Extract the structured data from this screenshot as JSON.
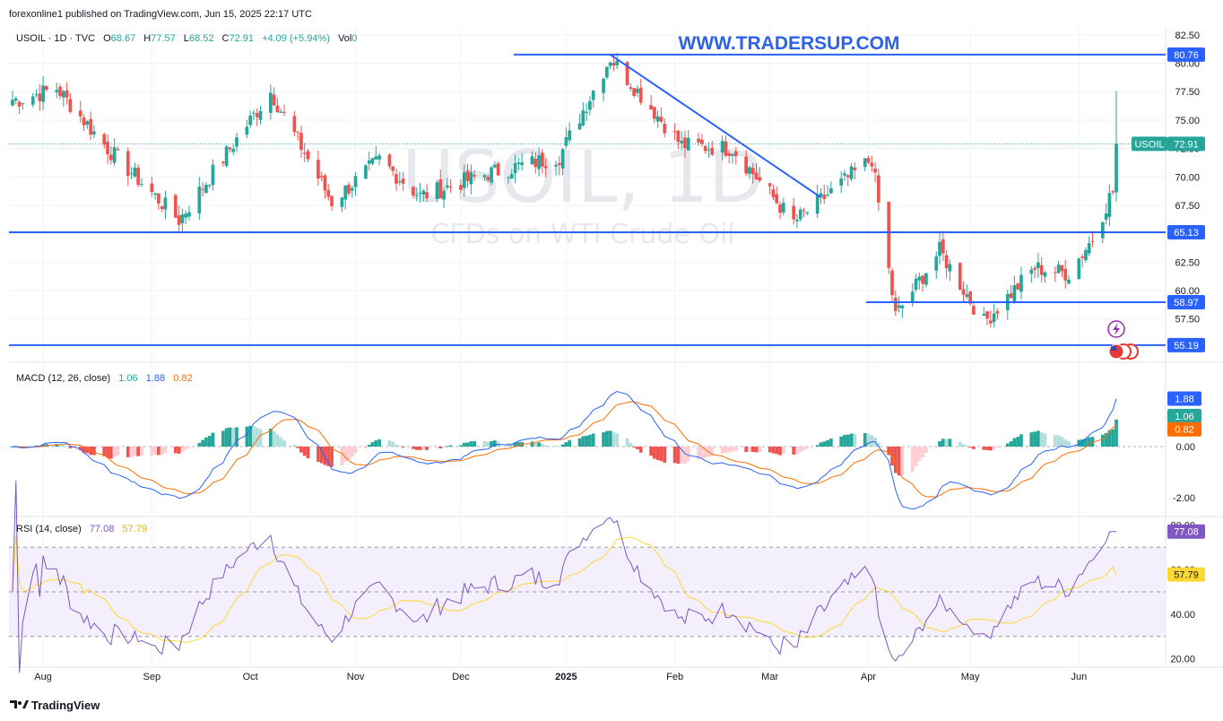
{
  "publish_line": "forexonline1 published on TradingView.com, Jun 15, 2025 22:17 UTC",
  "footer_brand": "TradingView",
  "website": "WWW.TRADERSUP.COM",
  "watermark": {
    "symbol": "USOIL, 1D",
    "description": "CFDs on WTI Crude Oil"
  },
  "legend": {
    "symbol": "USOIL · 1D · TVC",
    "o_label": "O",
    "o": "68.67",
    "h_label": "H",
    "h": "77.57",
    "l_label": "L",
    "l": "68.52",
    "c_label": "C",
    "c": "72.91",
    "change": "+4.09 (+5.94%)",
    "vol_label": "Vol",
    "vol": "0"
  },
  "colors": {
    "up": "#26a69a",
    "down": "#ef5350",
    "level_line": "#2962ff",
    "grid": "#f0f3fa",
    "macd_line": "#2962ff",
    "signal_line": "#ff6d00",
    "rsi_line": "#7e57c2",
    "rsi_ma": "#fdd835",
    "rsi_band": "#f3effc",
    "price_badge": "#26a69a"
  },
  "chart_data": [
    {
      "type": "candlestick",
      "title": "USOIL · 1D · TVC",
      "ylim": [
        54,
        83.2
      ],
      "y_ticks": [
        "82.50",
        "80.00",
        "77.50",
        "75.00",
        "72.50",
        "70.00",
        "67.50",
        "65.00",
        "62.50",
        "60.00",
        "57.50",
        "55.00"
      ],
      "x_ticks": [
        "Aug",
        "Sep",
        "Oct",
        "Nov",
        "Dec",
        "2025",
        "Feb",
        "Mar",
        "Apr",
        "May",
        "Jun"
      ],
      "last_close": 72.91,
      "last_close_label": "USOIL",
      "last_close_text": "72.91",
      "horizontal_levels": [
        {
          "value": 80.76,
          "label": "80.76"
        },
        {
          "value": 65.13,
          "label": "65.13"
        },
        {
          "value": 58.97,
          "label": "58.97"
        },
        {
          "value": 55.19,
          "label": "55.19"
        }
      ],
      "trendline": {
        "from": {
          "date": "2025-01-15",
          "value": 80.76
        },
        "to": {
          "date": "2025-03-18",
          "value": 68.2
        }
      },
      "key_points": [
        {
          "date": "2024-07-25",
          "value": 76.8
        },
        {
          "date": "2024-08-05",
          "value": 77.8
        },
        {
          "date": "2024-08-20",
          "value": 72.5
        },
        {
          "date": "2024-09-10",
          "value": 66.2
        },
        {
          "date": "2024-10-07",
          "value": 77.5
        },
        {
          "date": "2024-10-25",
          "value": 67.8
        },
        {
          "date": "2024-11-08",
          "value": 71.5
        },
        {
          "date": "2024-11-20",
          "value": 68.3
        },
        {
          "date": "2024-12-10",
          "value": 70.3
        },
        {
          "date": "2024-12-31",
          "value": 71.8
        },
        {
          "date": "2025-01-15",
          "value": 80.5
        },
        {
          "date": "2025-02-05",
          "value": 72.8
        },
        {
          "date": "2025-02-20",
          "value": 72.5
        },
        {
          "date": "2025-03-10",
          "value": 66.0
        },
        {
          "date": "2025-04-02",
          "value": 71.6
        },
        {
          "date": "2025-04-09",
          "value": 57.8
        },
        {
          "date": "2025-04-22",
          "value": 63.5
        },
        {
          "date": "2025-05-05",
          "value": 57.2
        },
        {
          "date": "2025-05-20",
          "value": 62.0
        },
        {
          "date": "2025-05-30",
          "value": 61.5
        },
        {
          "date": "2025-06-06",
          "value": 64.6
        },
        {
          "date": "2025-06-11",
          "value": 68.2
        },
        {
          "date": "2025-06-12",
          "value": 68.7
        },
        {
          "date": "2025-06-13",
          "value": 72.91
        }
      ]
    },
    {
      "type": "line",
      "title": "MACD (12, 26, close)",
      "values_text": [
        "1.06",
        "1.88",
        "0.82"
      ],
      "ylim": [
        -2.6,
        3.2
      ],
      "y_ticks": [
        "0.00",
        "-2.00"
      ],
      "macd_badge_text": "1.88",
      "hist_badge_text": "1.06",
      "signal_badge_text": "0.82",
      "last": {
        "macd": 1.88,
        "signal": 0.82,
        "histogram": 1.06
      }
    },
    {
      "type": "line",
      "title": "RSI (14, close)",
      "values_text": [
        "77.08",
        "57.79"
      ],
      "ylim": [
        17,
        83
      ],
      "y_ticks": [
        "80.00",
        "60.00",
        "40.00",
        "20.00"
      ],
      "bands": [
        70,
        50,
        30
      ],
      "rsi_badge_text": "77.08",
      "ma_badge_text": "57.79",
      "last": {
        "rsi": 77.08,
        "rsi_ma": 57.79
      }
    }
  ]
}
